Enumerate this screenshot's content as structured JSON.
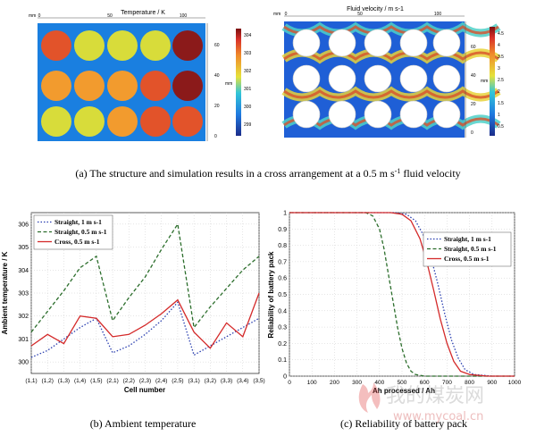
{
  "panel_a": {
    "caption": "(a) The structure and simulation results in a cross arrangement at a 0.5 m s-1 fluid velocity",
    "caption_pre": "(a) The structure and simulation results in a cross arrangement at a 0.5 m s",
    "caption_sup": "-1",
    "caption_post": " fluid velocity",
    "left": {
      "title": "Temperature / K",
      "unit": "mm",
      "top_ticks": [
        "0",
        "50",
        "100"
      ],
      "right_ticks": [
        "0",
        "20",
        "40",
        "60"
      ],
      "colorbar_ticks": [
        "299",
        "300",
        "301",
        "302",
        "303",
        "304"
      ],
      "colors": {
        "bg": "#1a7fe0",
        "hot": "#8b1a1a",
        "warm": "#e2532a",
        "mild": "#f29b2e",
        "cool": "#d8dc3a"
      }
    },
    "right": {
      "title": "Fluid velocity / m s-1",
      "unit": "mm",
      "top_ticks": [
        "0",
        "50",
        "100"
      ],
      "right_ticks": [
        "0",
        "20",
        "40",
        "60"
      ],
      "colorbar_ticks": [
        "0.5",
        "1",
        "1.5",
        "2",
        "2.5",
        "3",
        "3.5",
        "4",
        "4.5"
      ]
    }
  },
  "panel_b": {
    "caption": "(b) Ambient temperature",
    "chart_data": {
      "type": "line",
      "xlabel": "Cell number",
      "ylabel": "Ambient temperature / K",
      "categories": [
        "(1,1)",
        "(1,2)",
        "(1,3)",
        "(1,4)",
        "(1,5)",
        "(2,1)",
        "(2,2)",
        "(2,3)",
        "(2,4)",
        "(2,5)",
        "(3,1)",
        "(3,2)",
        "(3,3)",
        "(3,4)",
        "(3,5)"
      ],
      "ylim": [
        299.5,
        306.5
      ],
      "yticks": [
        300,
        301,
        302,
        303,
        304,
        305,
        306
      ],
      "legend_position": "top-left",
      "series": [
        {
          "name": "Straight, 1 m s-1",
          "color": "#2a3fb0",
          "dash": "1.5,2",
          "values": [
            300.2,
            300.5,
            301.0,
            301.5,
            301.9,
            300.4,
            300.7,
            301.2,
            301.8,
            302.6,
            300.3,
            300.7,
            301.1,
            301.5,
            301.9
          ]
        },
        {
          "name": "Straight, 0.5 m s-1",
          "color": "#2c6e2c",
          "dash": "4,2.5",
          "values": [
            301.3,
            302.2,
            303.1,
            304.1,
            304.6,
            301.8,
            302.8,
            303.7,
            304.9,
            306.0,
            301.5,
            302.4,
            303.2,
            304.0,
            304.6
          ]
        },
        {
          "name": "Cross, 0.5 m s-1",
          "color": "#d42a2a",
          "dash": "",
          "values": [
            300.7,
            301.2,
            300.8,
            302.0,
            301.9,
            301.1,
            301.2,
            301.6,
            302.1,
            302.7,
            301.3,
            300.6,
            301.7,
            301.1,
            303.0
          ]
        }
      ]
    }
  },
  "panel_c": {
    "caption": "(c) Reliability of battery pack",
    "chart_data": {
      "type": "line",
      "xlabel": "Ah processed / Ah",
      "ylabel": "Reliability of battery pack",
      "xlim": [
        0,
        1000
      ],
      "ylim": [
        0,
        1
      ],
      "xticks": [
        0,
        100,
        200,
        300,
        400,
        500,
        600,
        700,
        800,
        900,
        1000
      ],
      "yticks": [
        0,
        0.1,
        0.2,
        0.3,
        0.4,
        0.5,
        0.6,
        0.7,
        0.8,
        0.9,
        1
      ],
      "legend_position": "top-right",
      "series": [
        {
          "name": "Straight, 1 m s-1",
          "color": "#2a3fb0",
          "dash": "1.5,2",
          "x": [
            0,
            470,
            520,
            560,
            600,
            630,
            660,
            690,
            720,
            750,
            780,
            820,
            900,
            1000
          ],
          "y": [
            1,
            1,
            0.99,
            0.95,
            0.85,
            0.72,
            0.56,
            0.38,
            0.22,
            0.11,
            0.04,
            0.01,
            0,
            0
          ]
        },
        {
          "name": "Straight, 0.5 m s-1",
          "color": "#2c6e2c",
          "dash": "4,2.5",
          "x": [
            0,
            340,
            370,
            400,
            420,
            440,
            460,
            480,
            500,
            520,
            540,
            560,
            600,
            700,
            1000
          ],
          "y": [
            1,
            1,
            0.98,
            0.9,
            0.78,
            0.62,
            0.46,
            0.3,
            0.17,
            0.08,
            0.03,
            0.01,
            0,
            0,
            0
          ]
        },
        {
          "name": "Cross, 0.5 m s-1",
          "color": "#d42a2a",
          "dash": "",
          "x": [
            0,
            450,
            500,
            540,
            580,
            610,
            640,
            670,
            700,
            730,
            760,
            800,
            880,
            1000
          ],
          "y": [
            1,
            1,
            0.99,
            0.95,
            0.84,
            0.7,
            0.53,
            0.35,
            0.2,
            0.09,
            0.03,
            0.01,
            0,
            0
          ]
        }
      ]
    }
  },
  "watermark": {
    "text": "我的煤炭网",
    "url": "www.mycoal.cn"
  }
}
